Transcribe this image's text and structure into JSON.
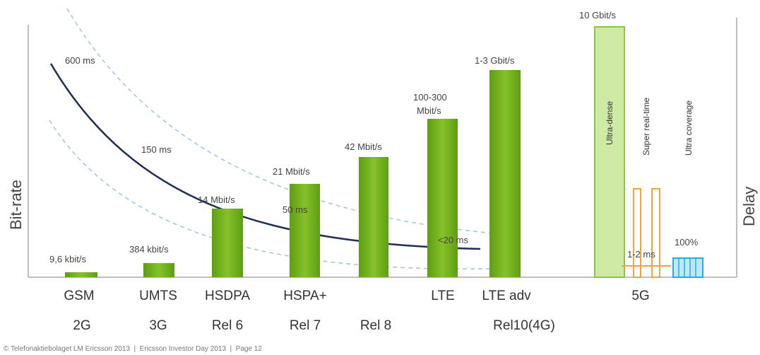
{
  "y_axis_left": "Bit-rate",
  "y_axis_right": "Delay",
  "bit_rates": [
    "9,6 kbit/s",
    "384 kbit/s",
    "14 Mbit/s",
    "21 Mbit/s",
    "42 Mbit/s",
    "100-300",
    "Mbit/s",
    "1-3 Gbit/s",
    "10 Gbit/s"
  ],
  "delays": [
    "600 ms",
    "150 ms",
    "50 ms",
    "<20 ms",
    "1-2 ms",
    "100%"
  ],
  "fiveg_features": [
    "Ultra-dense",
    "Super real-time",
    "Ultra coverage"
  ],
  "technologies": [
    "GSM",
    "UMTS",
    "HSDPA",
    "HSPA+",
    "LTE",
    "LTE adv",
    "5G"
  ],
  "generations": [
    "2G",
    "3G",
    "Rel 6",
    "Rel 7",
    "Rel 8",
    "Rel10(4G)"
  ],
  "footer": "© Telefonaktiebolaget LM Ericsson 2013  |  Ericsson Investor Day 2013  |  Page 12"
}
